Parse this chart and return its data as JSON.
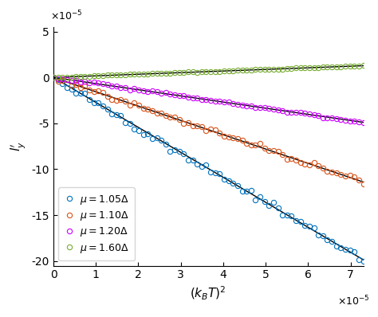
{
  "title": "",
  "xlabel": "$(k_BT)^2$",
  "ylabel": "$l^{\\prime}_y$",
  "xlim": [
    0,
    7.3e-05
  ],
  "ylim": [
    -0.000205,
    5.5e-05
  ],
  "series": [
    {
      "label": "$\\mu = 1.05\\Delta$",
      "color": "#0072bd",
      "slope": -2.72,
      "intercept": 0.0,
      "n_points": 70
    },
    {
      "label": "$\\mu = 1.10\\Delta$",
      "color": "#d95319",
      "slope": -1.56,
      "intercept": 0.0,
      "n_points": 70
    },
    {
      "label": "$\\mu = 1.20\\Delta$",
      "color": "#cc00ff",
      "slope": -0.67,
      "intercept": 0.0,
      "n_points": 70
    },
    {
      "label": "$\\mu = 1.60\\Delta$",
      "color": "#77ac30",
      "slope": 0.175,
      "intercept": 0.0,
      "n_points": 70
    }
  ],
  "fit_color": "black",
  "fit_linewidth": 1.0,
  "marker": "o",
  "markersize": 4.5,
  "markeredgewidth": 0.8,
  "xticks": [
    0,
    1e-05,
    2e-05,
    3e-05,
    4e-05,
    5e-05,
    6e-05,
    7e-05
  ],
  "yticks": [
    -0.0002,
    -0.00015,
    -0.0001,
    -5e-05,
    0,
    5e-05
  ]
}
